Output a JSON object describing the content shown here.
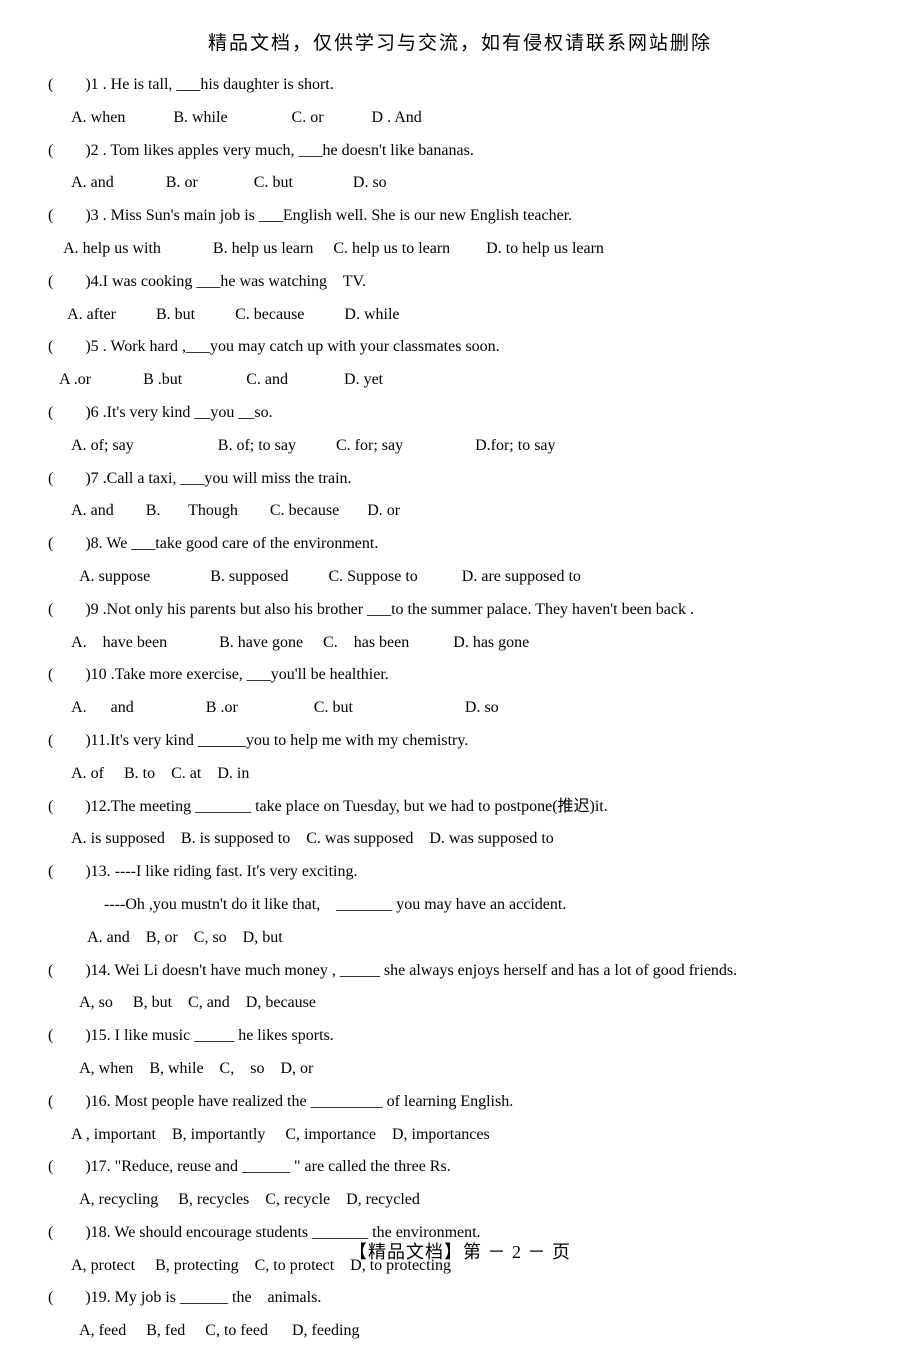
{
  "header": "精品文档，仅供学习与交流，如有侵权请联系网站删除",
  "footer": "【精品文档】第 － 2 － 页",
  "questions": [
    {
      "stem": "(        )1 . He is tall, ___his daughter is short.",
      "opts": "      A. when            B. while                C. or            D . And"
    },
    {
      "stem": "(        )2 . Tom likes apples very much, ___he doesn't like bananas.",
      "opts": "      A. and             B. or              C. but               D. so"
    },
    {
      "stem": "(        )3 . Miss Sun's main job is ___English well. She is our new English teacher.",
      "opts": "    A. help us with             B. help us learn     C. help us to learn         D. to help us learn"
    },
    {
      "stem": "(        )4.I was cooking ___he was watching    TV.",
      "opts": "     A. after          B. but          C. because          D. while"
    },
    {
      "stem": "(        )5 . Work hard ,___you may catch up with your classmates soon.",
      "opts": "   A .or             B .but                C. and              D. yet"
    },
    {
      "stem": "(        )6 .It's very kind __you __so.",
      "opts": "      A. of; say                     B. of; to say          C. for; say                  D.for; to say"
    },
    {
      "stem": "(        )7 .Call a taxi, ___you will miss the train.",
      "opts": "      A. and        B.       Though        C. because       D. or"
    },
    {
      "stem": "(        )8. We ___take good care of the environment.",
      "opts": "        A. suppose               B. supposed          C. Suppose to           D. are supposed to"
    },
    {
      "stem": "(        )9 .Not only his parents but also his brother ___to the summer palace. They haven't been back .",
      "opts": "      A.    have been             B. have gone     C.    has been           D. has gone"
    },
    {
      "stem": "(        )10 .Take more exercise, ___you'll be healthier.",
      "opts": "      A.      and                  B .or                   C. but                            D. so"
    },
    {
      "stem": "(        )11.It's very kind ______you to help me with my chemistry.",
      "opts": "      A. of     B. to    C. at    D. in"
    },
    {
      "stem": "(        )12.The meeting _______ take place on Tuesday, but we had to postpone(推迟)it.",
      "opts": "      A. is supposed    B. is supposed to    C. was supposed    D. was supposed to"
    },
    {
      "stem": "(        )13. ----I like riding fast. It's very exciting.",
      "line2": "              ----Oh ,you mustn't do it like that,    _______ you may have an accident.",
      "opts": "          A. and    B, or    C, so    D, but"
    },
    {
      "stem": "(        )14. Wei Li doesn't have much money , _____ she always enjoys herself and has a lot of good friends.",
      "opts": "        A, so     B, but    C, and    D, because"
    },
    {
      "stem": "(        )15. I like music _____ he likes sports.",
      "opts": "        A, when    B, while    C,    so    D, or"
    },
    {
      "stem": "(        )16. Most people have realized the _________ of learning English.",
      "opts": "      A , important    B, importantly     C, importance    D, importances"
    },
    {
      "stem": "(        )17. \"Reduce, reuse and ______ \" are called the three Rs.",
      "opts": "        A, recycling     B, recycles    C, recycle    D, recycled"
    },
    {
      "stem": "(        )18. We should encourage students _______ the environment.",
      "opts": "      A, protect     B, protecting    C, to protect    D, to protecting"
    },
    {
      "stem": "(        )19. My job is ______ the    animals.",
      "opts": "        A, feed     B, fed     C, to feed      D, feeding"
    }
  ]
}
